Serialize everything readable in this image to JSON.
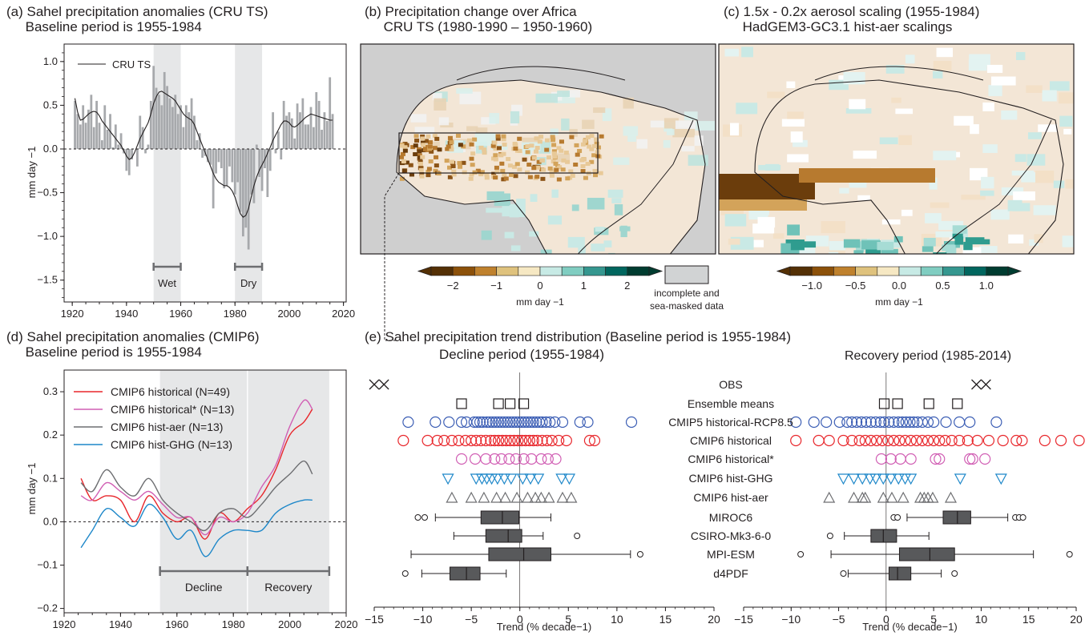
{
  "titles": {
    "a": "(a) Sahel precipitation anomalies (CRU TS)\n     Baseline period is 1955-1984",
    "b": "(b) Precipitation change over Africa\n     CRU TS (1980-1990 – 1950-1960)",
    "c": "(c) 1.5x - 0.2x aerosol scaling (1955-1984)\n     HadGEM3-GC3.1 hist-aer scalings",
    "d": "(d) Sahel precipitation anomalies (CMIP6)\n     Baseline period is 1955-1984",
    "e": "(e) Sahel precipitation trend distribution (Baseline period is 1955-1984)",
    "e_left": "Decline period (1955-1984)",
    "e_right": "Recovery period (1985-2014)"
  },
  "colors": {
    "obs_bar": "#a7a9ac",
    "shade": "#e6e7e8",
    "hist": "#e8262b",
    "histstar": "#d15fb4",
    "aer": "#6d6e71",
    "ghg": "#1d87c9",
    "cmip5": "#3d5fb5",
    "box": "#58595b"
  },
  "chart_data": [
    {
      "id": "a",
      "type": "bar",
      "title": "(a) Sahel precipitation anomalies (CRU TS)",
      "subtitle": "Baseline period is 1955-1984",
      "ylabel": "mm day −1",
      "xlim": [
        1917,
        2021
      ],
      "ylim": [
        -1.75,
        1.2
      ],
      "xticks": [
        1920,
        1940,
        1960,
        1980,
        2000,
        2020
      ],
      "yticks": [
        -1.5,
        -1.0,
        -0.5,
        0.0,
        0.5,
        1.0
      ],
      "ytick_labels": [
        "−1.5",
        "−1.0",
        "−0.5",
        "0.0",
        "0.5",
        "1.0"
      ],
      "legend": [
        "CRU TS"
      ],
      "shaded_periods": [
        {
          "label": "Wet",
          "from": 1950,
          "to": 1960
        },
        {
          "label": "Dry",
          "from": 1980,
          "to": 1990
        }
      ],
      "years": [
        1921,
        1922,
        1923,
        1924,
        1925,
        1926,
        1927,
        1928,
        1929,
        1930,
        1931,
        1932,
        1933,
        1934,
        1935,
        1936,
        1937,
        1938,
        1939,
        1940,
        1941,
        1942,
        1943,
        1944,
        1945,
        1946,
        1947,
        1948,
        1949,
        1950,
        1951,
        1952,
        1953,
        1954,
        1955,
        1956,
        1957,
        1958,
        1959,
        1960,
        1961,
        1962,
        1963,
        1964,
        1965,
        1966,
        1967,
        1968,
        1969,
        1970,
        1971,
        1972,
        1973,
        1974,
        1975,
        1976,
        1977,
        1978,
        1979,
        1980,
        1981,
        1982,
        1983,
        1984,
        1985,
        1986,
        1987,
        1988,
        1989,
        1990,
        1991,
        1992,
        1993,
        1994,
        1995,
        1996,
        1997,
        1998,
        1999,
        2000,
        2001,
        2002,
        2003,
        2004,
        2005,
        2006,
        2007,
        2008,
        2009,
        2010,
        2011,
        2012,
        2013,
        2014,
        2015,
        2016
      ],
      "values": [
        0.55,
        0.4,
        0.28,
        0.5,
        0.3,
        0.45,
        0.62,
        0.25,
        0.55,
        0.3,
        0.1,
        0.5,
        0.22,
        0.4,
        0.02,
        0.28,
        0.05,
        0.18,
        -0.05,
        -0.25,
        -0.3,
        -0.12,
        0.0,
        -0.2,
        0.38,
        0.25,
        -0.05,
        0.05,
        0.55,
        0.95,
        0.7,
        0.62,
        0.5,
        0.88,
        0.72,
        0.58,
        0.48,
        0.62,
        0.4,
        0.5,
        0.25,
        0.5,
        0.42,
        0.58,
        0.38,
        0.1,
        0.18,
        -0.1,
        -0.08,
        -0.15,
        -0.18,
        -0.68,
        -0.28,
        -0.15,
        -0.22,
        -0.45,
        -0.42,
        -0.2,
        -0.38,
        -0.52,
        -0.38,
        -0.72,
        -1.0,
        -0.9,
        -1.15,
        -0.52,
        -0.62,
        0.05,
        -0.32,
        -0.48,
        -0.22,
        -0.55,
        -0.25,
        0.42,
        -0.05,
        0.2,
        -0.12,
        0.55,
        0.38,
        0.42,
        0.35,
        0.12,
        0.52,
        0.42,
        0.58,
        0.28,
        0.28,
        0.48,
        0.25,
        0.65,
        0.55,
        0.22,
        0.42,
        0.32,
        0.82,
        0.4
      ],
      "smooth": [
        0.58,
        0.42,
        0.33,
        0.34,
        0.37,
        0.4,
        0.42,
        0.43,
        0.42,
        0.38,
        0.32,
        0.28,
        0.24,
        0.2,
        0.16,
        0.12,
        0.08,
        0.04,
        -0.02,
        -0.08,
        -0.12,
        -0.1,
        -0.04,
        0.04,
        0.12,
        0.18,
        0.24,
        0.3,
        0.4,
        0.52,
        0.6,
        0.65,
        0.66,
        0.64,
        0.62,
        0.6,
        0.58,
        0.55,
        0.5,
        0.45,
        0.4,
        0.37,
        0.35,
        0.33,
        0.28,
        0.2,
        0.12,
        0.04,
        -0.04,
        -0.12,
        -0.2,
        -0.28,
        -0.34,
        -0.38,
        -0.4,
        -0.42,
        -0.42,
        -0.44,
        -0.48,
        -0.55,
        -0.65,
        -0.74,
        -0.78,
        -0.76,
        -0.68,
        -0.55,
        -0.42,
        -0.32,
        -0.24,
        -0.18,
        -0.12,
        -0.05,
        0.02,
        0.1,
        0.16,
        0.22,
        0.28,
        0.32,
        0.32,
        0.3,
        0.26,
        0.25,
        0.27,
        0.3,
        0.33,
        0.36,
        0.38,
        0.4,
        0.39,
        0.38,
        0.37,
        0.36,
        0.35,
        0.34,
        0.33,
        0.33
      ]
    },
    {
      "id": "d",
      "type": "line",
      "title": "(d) Sahel precipitation anomalies (CMIP6)",
      "subtitle": "Baseline period is 1955-1984",
      "ylabel": "mm day −1",
      "xlim": [
        1920,
        2020
      ],
      "ylim": [
        -0.21,
        0.35
      ],
      "xticks": [
        1920,
        1940,
        1960,
        1980,
        2000,
        2020
      ],
      "yticks": [
        -0.2,
        -0.1,
        0.0,
        0.1,
        0.2,
        0.3
      ],
      "ytick_labels": [
        "−0.2",
        "−0.1",
        "0.0",
        "0.1",
        "0.2",
        "0.3"
      ],
      "shaded_periods": [
        {
          "label": "Decline",
          "from": 1955,
          "to": 1985
        },
        {
          "label": "Recovery",
          "from": 1985,
          "to": 2014
        }
      ],
      "x": [
        1926,
        1930,
        1935,
        1940,
        1945,
        1950,
        1955,
        1960,
        1965,
        1970,
        1975,
        1980,
        1985,
        1990,
        1995,
        2000,
        2005,
        2008
      ],
      "series": [
        {
          "name": "CMIP6 historical (N=49)",
          "color": "hist",
          "values": [
            0.1,
            0.05,
            0.06,
            0.05,
            0.0,
            0.06,
            0.02,
            0.0,
            0.01,
            -0.04,
            0.02,
            0.0,
            0.03,
            0.06,
            0.12,
            0.2,
            0.23,
            0.26
          ]
        },
        {
          "name": "CMIP6 historical* (N=13)",
          "color": "histstar",
          "values": [
            0.06,
            0.05,
            0.09,
            0.07,
            0.05,
            0.07,
            0.04,
            0.01,
            0.01,
            -0.03,
            0.01,
            0.0,
            0.02,
            0.08,
            0.13,
            0.22,
            0.28,
            0.26
          ]
        },
        {
          "name": "CMIP6 hist-aer (N=13)",
          "color": "aer",
          "values": [
            0.09,
            0.07,
            0.12,
            0.08,
            0.06,
            0.1,
            0.05,
            0.02,
            0.0,
            -0.02,
            0.02,
            0.03,
            0.01,
            0.04,
            0.08,
            0.11,
            0.14,
            0.11
          ]
        },
        {
          "name": "CMIP6 hist-GHG (N=13)",
          "color": "ghg",
          "values": [
            -0.06,
            -0.02,
            0.03,
            0.01,
            -0.01,
            0.04,
            0.01,
            -0.04,
            -0.02,
            -0.08,
            -0.04,
            -0.02,
            -0.02,
            -0.02,
            0.02,
            0.04,
            0.05,
            0.05
          ]
        }
      ]
    },
    {
      "id": "e",
      "type": "scatter",
      "title": "(e) Sahel precipitation trend distribution (Baseline period is 1955-1984)",
      "xlabel": "Trend (% decade−1)",
      "xlim": [
        -15,
        20
      ],
      "xticks": [
        -15,
        -10,
        -5,
        0,
        5,
        10,
        15,
        20
      ],
      "xtick_labels": [
        "−15",
        "−10",
        "−5",
        "0",
        "5",
        "10",
        "15",
        "20"
      ],
      "rows": [
        {
          "label": "OBS",
          "color": "#231f20",
          "marker": "x",
          "decline": [
            -15.0,
            -14.0
          ],
          "recovery": [
            9.5,
            10.5
          ]
        },
        {
          "label": "Ensemble means",
          "color": "#231f20",
          "marker": "square",
          "decline": [
            -6.0,
            -2.2,
            -1.0,
            0.4
          ],
          "recovery": [
            -0.2,
            1.2,
            4.5,
            7.5
          ]
        },
        {
          "label": "CMIP5 historical-RCP8.5",
          "color": "cmip5",
          "marker": "circle",
          "decline": [
            -11.5,
            -8.7,
            -7.3,
            -6.0,
            -5.5,
            -4.7,
            -4.4,
            -4.1,
            -3.8,
            -3.4,
            -3.1,
            -2.8,
            -2.5,
            -2.2,
            -1.9,
            -1.6,
            -1.3,
            -1.0,
            -0.7,
            -0.4,
            -0.1,
            0.2,
            0.5,
            0.8,
            1.1,
            1.4,
            1.7,
            2.0,
            2.3,
            2.7,
            3.1,
            3.6,
            4.4,
            6.2,
            7.0,
            11.5
          ],
          "recovery": [
            -9.5,
            -7.6,
            -6.3,
            -4.9,
            -4.1,
            -3.6,
            -3.1,
            -2.6,
            -2.1,
            -1.6,
            -1.1,
            -0.6,
            -0.2,
            0.3,
            0.8,
            1.3,
            1.7,
            2.1,
            2.5,
            2.9,
            3.3,
            3.8,
            4.4,
            5.0,
            6.3,
            7.7,
            8.8,
            11.6
          ]
        },
        {
          "label": "CMIP6 historical",
          "color": "hist",
          "marker": "circle",
          "decline": [
            -12.0,
            -9.5,
            -8.5,
            -7.8,
            -7.0,
            -6.3,
            -5.6,
            -5.0,
            -4.5,
            -4.0,
            -3.5,
            -3.0,
            -2.6,
            -2.2,
            -1.8,
            -1.4,
            -1.0,
            -0.6,
            -0.2,
            0.2,
            0.6,
            1.0,
            1.4,
            1.8,
            2.3,
            2.8,
            3.3,
            4.0,
            4.8,
            7.2,
            7.7
          ],
          "recovery": [
            -9.5,
            -7.1,
            -6.0,
            -4.5,
            -3.6,
            -2.8,
            -2.2,
            -1.6,
            -1.0,
            -0.4,
            0.2,
            0.8,
            1.4,
            2.0,
            2.6,
            3.2,
            3.8,
            4.4,
            5.0,
            5.6,
            6.2,
            6.9,
            7.7,
            8.6,
            9.6,
            10.8,
            12.3,
            13.7,
            14.3,
            16.7,
            18.4,
            20.3
          ]
        },
        {
          "label": "CMIP6 historical*",
          "color": "histstar",
          "marker": "circle",
          "decline": [
            -6.0,
            -4.6,
            -3.5,
            -2.6,
            -1.9,
            -1.1,
            -0.4,
            0.4,
            1.2,
            2.2,
            2.9,
            3.7
          ],
          "recovery": [
            -0.5,
            0.5,
            1.5,
            2.6,
            5.2,
            5.6,
            8.8,
            9.1,
            10.4
          ]
        },
        {
          "label": "CMIP6 hist-GHG",
          "color": "ghg",
          "marker": "triangle",
          "decline": [
            -7.4,
            -4.5,
            -3.9,
            -3.4,
            -2.9,
            -2.3,
            -1.6,
            -0.9,
            0.3,
            1.1,
            1.9,
            4.3,
            5.1
          ],
          "recovery": [
            -4.5,
            -3.4,
            -2.5,
            -1.7,
            -1.1,
            -0.3,
            0.5,
            1.3,
            2.0,
            2.6,
            7.8,
            12.1
          ]
        },
        {
          "label": "CMIP6 hist-aer",
          "color": "aer",
          "marker": "triangle",
          "decline": [
            -7.0,
            -5.0,
            -3.7,
            -2.4,
            -1.5,
            -0.3,
            0.8,
            1.6,
            2.2,
            3.0,
            4.4,
            5.3
          ],
          "recovery": [
            -6.0,
            -3.4,
            -2.5,
            -2.2,
            -0.3,
            0.6,
            1.8,
            3.6,
            4.0,
            4.4,
            4.9,
            6.8
          ]
        }
      ],
      "boxes": [
        {
          "label": "MIROC6",
          "decline": {
            "whisker": [
              -8.7,
              3.2
            ],
            "q": [
              -4.0,
              -1.8,
              -0.1
            ],
            "outliers": [
              -10.5,
              -9.8
            ]
          },
          "recovery": {
            "whisker": [
              2.2,
              12.8
            ],
            "q": [
              6.0,
              7.5,
              8.9
            ],
            "outliers": [
              0.8,
              1.2,
              13.6,
              14.0,
              14.4
            ]
          }
        },
        {
          "label": "CSIRO-Mk3-6-0",
          "decline": {
            "whisker": [
              -6.8,
              2.4
            ],
            "q": [
              -3.5,
              -1.2,
              0.2
            ],
            "outliers": [
              5.9
            ]
          },
          "recovery": {
            "whisker": [
              -4.4,
              4.5
            ],
            "q": [
              -1.6,
              -0.3,
              1.1
            ],
            "outliers": [
              -5.9
            ]
          }
        },
        {
          "label": "MPI-ESM",
          "decline": {
            "whisker": [
              -11.2,
              11.4
            ],
            "q": [
              -3.2,
              0.4,
              3.2
            ],
            "outliers": [
              12.4
            ]
          },
          "recovery": {
            "whisker": [
              -5.8,
              15.5
            ],
            "q": [
              1.4,
              4.6,
              7.2
            ],
            "outliers": [
              -9.0,
              19.3
            ]
          }
        },
        {
          "label": "d4PDF",
          "decline": {
            "whisker": [
              -10.1,
              -1.4
            ],
            "q": [
              -7.2,
              -5.5,
              -4.1
            ],
            "outliers": [
              -11.8
            ]
          },
          "recovery": {
            "whisker": [
              -4.0,
              5.8
            ],
            "q": [
              0.3,
              1.2,
              2.6
            ],
            "outliers": [
              -4.5,
              7.2
            ]
          }
        }
      ]
    }
  ],
  "maps": {
    "b": {
      "colorbar_ticks": [
        "−2",
        "−1",
        "0",
        "1",
        "2"
      ],
      "colorbar_label": "mm day −1",
      "mask_label_1": "incomplete and",
      "mask_label_2": "sea-masked data"
    },
    "c": {
      "colorbar_ticks": [
        "−1.0",
        "−0.5",
        "0.0",
        "0.5",
        "1.0"
      ],
      "colorbar_label": "mm day −1"
    }
  }
}
